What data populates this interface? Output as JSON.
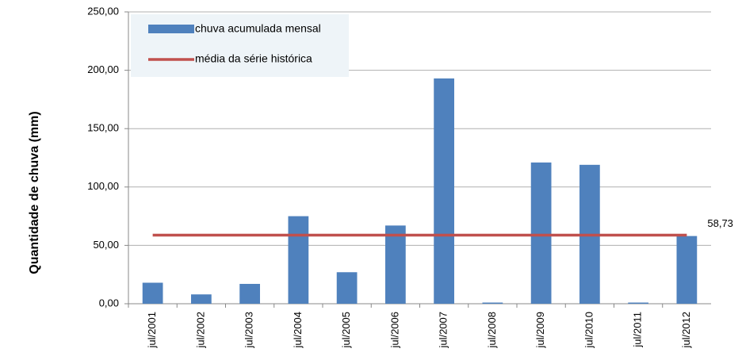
{
  "chart_data": {
    "type": "bar",
    "y_label": "Quantidade de chuva (mm)",
    "categories": [
      "jul/2001",
      "jul/2002",
      "jul/2003",
      "jul/2004",
      "jul/2005",
      "jul/2006",
      "jul/2007",
      "jul/2008",
      "jul/2009",
      "jul/2010",
      "jul/2011",
      "jul/2012"
    ],
    "series": [
      {
        "name": "chuva acumulada mensal",
        "color": "#4f81bd",
        "values": [
          18,
          8,
          17,
          75,
          27,
          67,
          193,
          1,
          121,
          119,
          1,
          58
        ]
      }
    ],
    "average": {
      "name": "média da série histórica",
      "color": "#c0504d",
      "value": 58.73,
      "label": "58,73"
    },
    "ylim": [
      0,
      250
    ],
    "yticks": [
      {
        "value": 0,
        "label": "0,00"
      },
      {
        "value": 50,
        "label": "50,00"
      },
      {
        "value": 100,
        "label": "100,00"
      },
      {
        "value": 150,
        "label": "150,00"
      },
      {
        "value": 200,
        "label": "200,00"
      },
      {
        "value": 250,
        "label": "250,00"
      }
    ],
    "grid": true
  }
}
